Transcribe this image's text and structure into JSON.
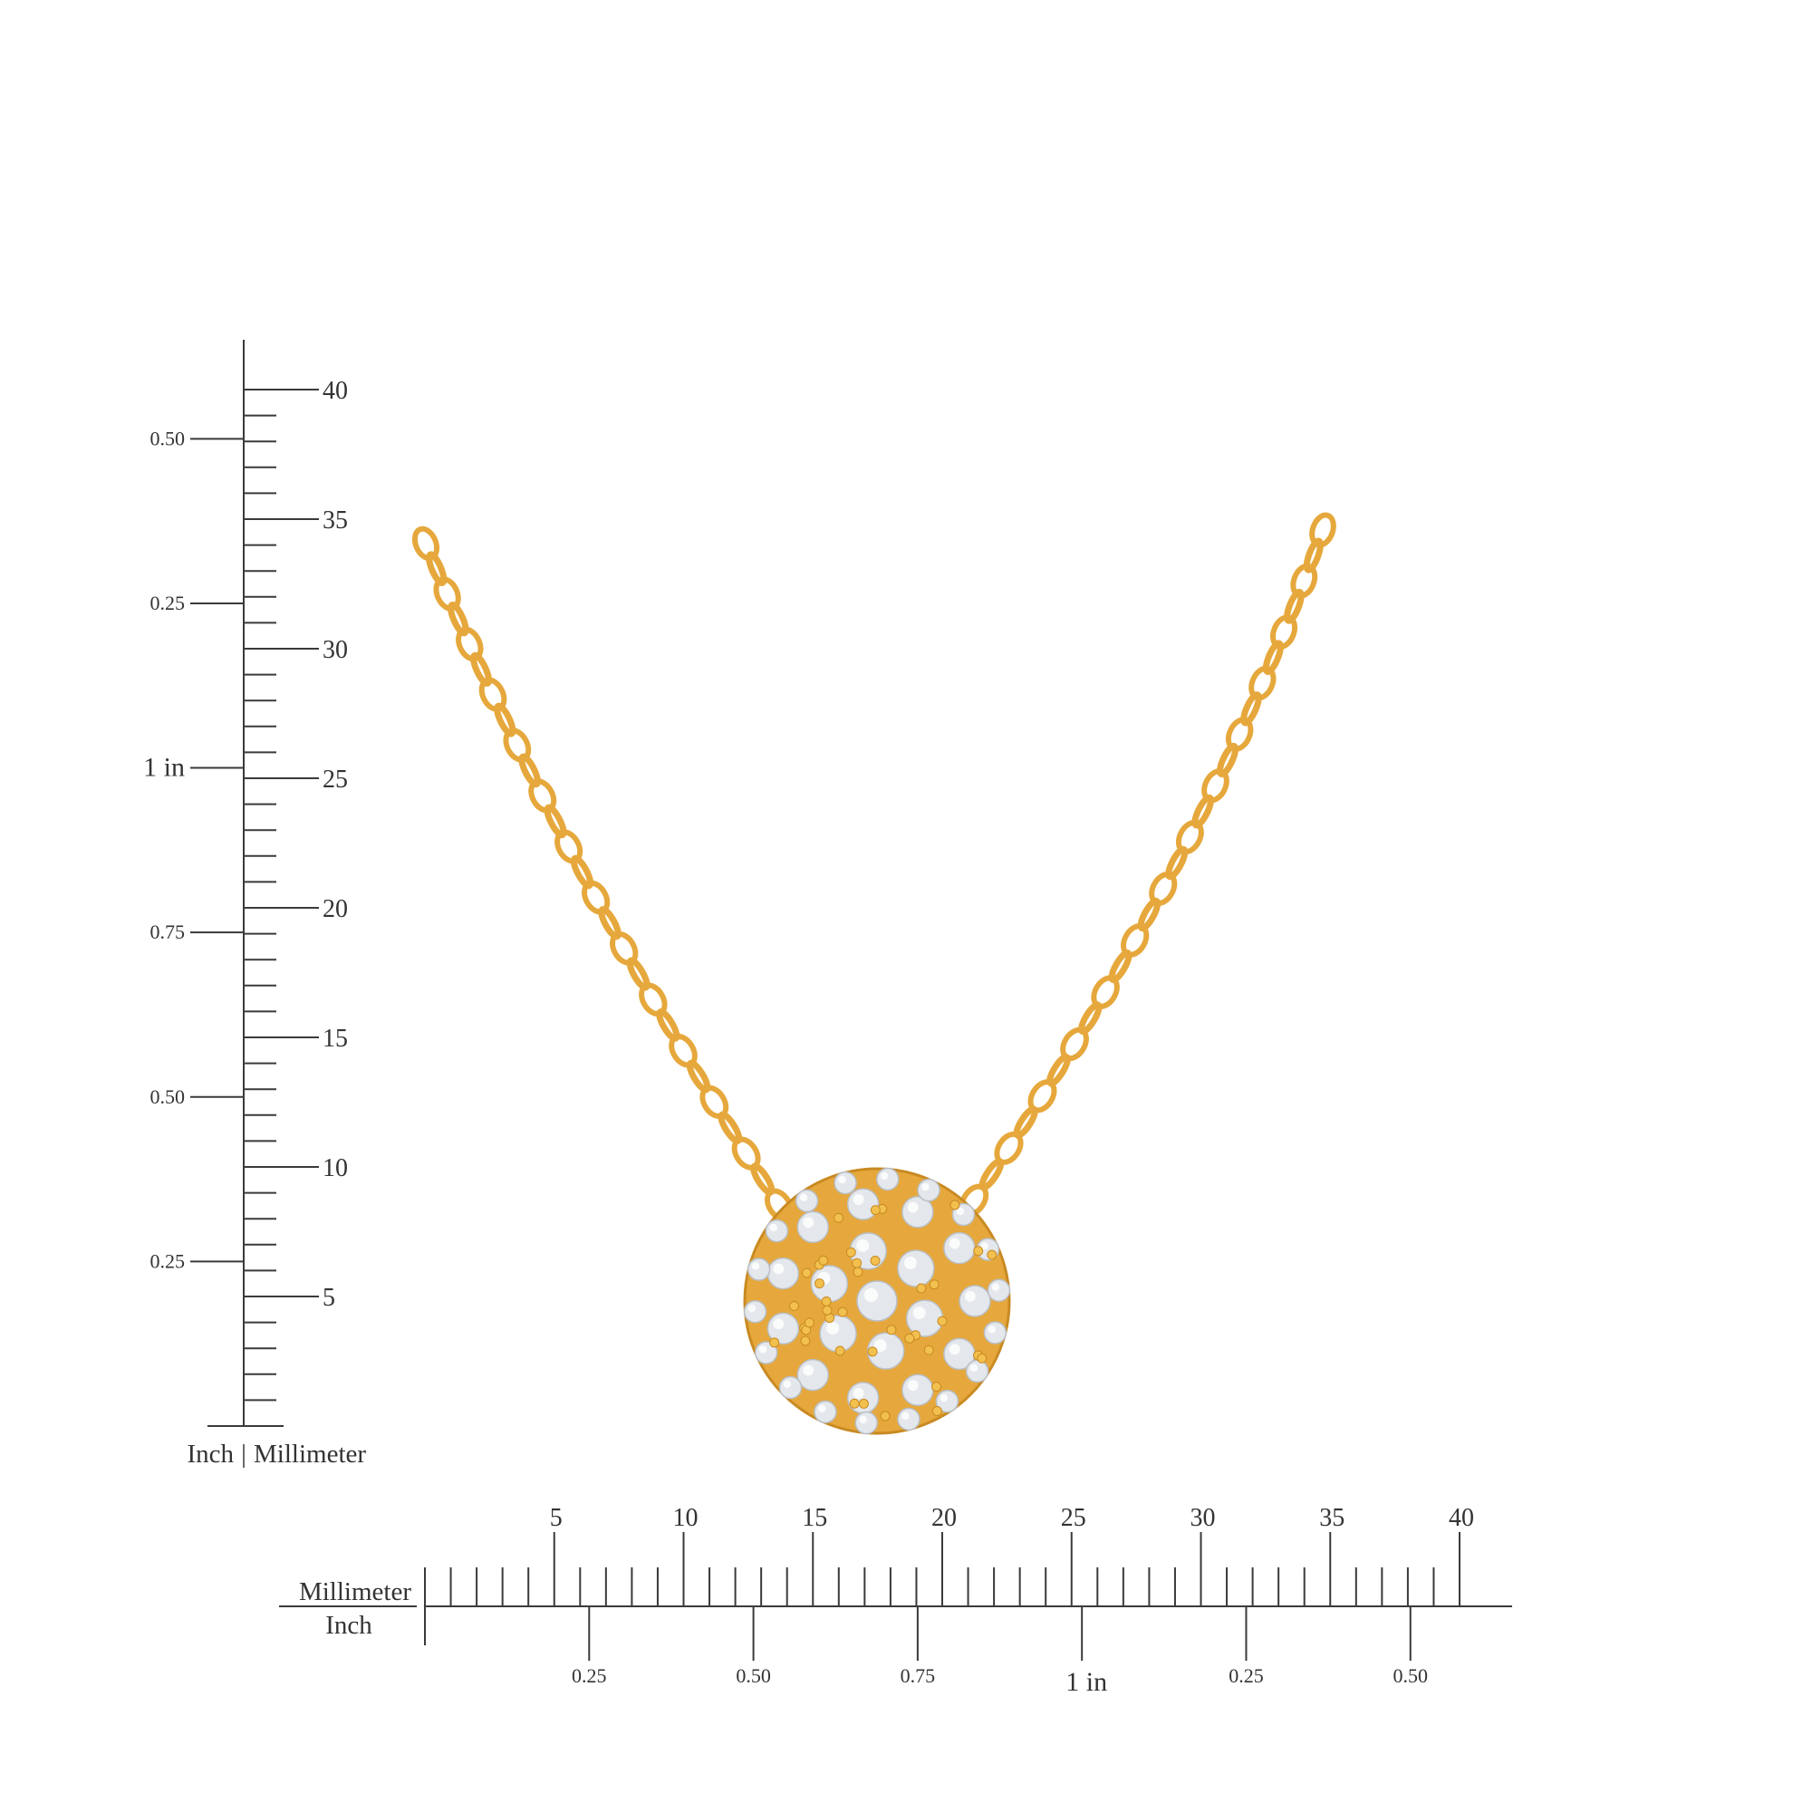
{
  "vertical_ruler": {
    "caption_inch": "Inch",
    "caption_separator": "|",
    "caption_mm": "Millimeter",
    "mm_labels": [
      "5",
      "10",
      "15",
      "20",
      "25",
      "30",
      "35",
      "40"
    ],
    "inch_labels": [
      "0.25",
      "0.50",
      "0.75",
      "1 in",
      "0.25",
      "0.50"
    ]
  },
  "horizontal_ruler": {
    "label_mm": "Millimeter",
    "label_inch": "Inch",
    "mm_labels": [
      "5",
      "10",
      "15",
      "20",
      "25",
      "30",
      "35",
      "40"
    ],
    "inch_labels": [
      "0.25",
      "0.50",
      "0.75",
      "1 in",
      "0.25",
      "0.50"
    ]
  },
  "colors": {
    "gold": "#E6A83C",
    "gold_dark": "#C98A22",
    "diamond": "#E4E8EC",
    "ruler": "#3a3a3a"
  },
  "product": {
    "type": "pavé diamond disc pendant necklace",
    "metal": "yellow gold"
  }
}
